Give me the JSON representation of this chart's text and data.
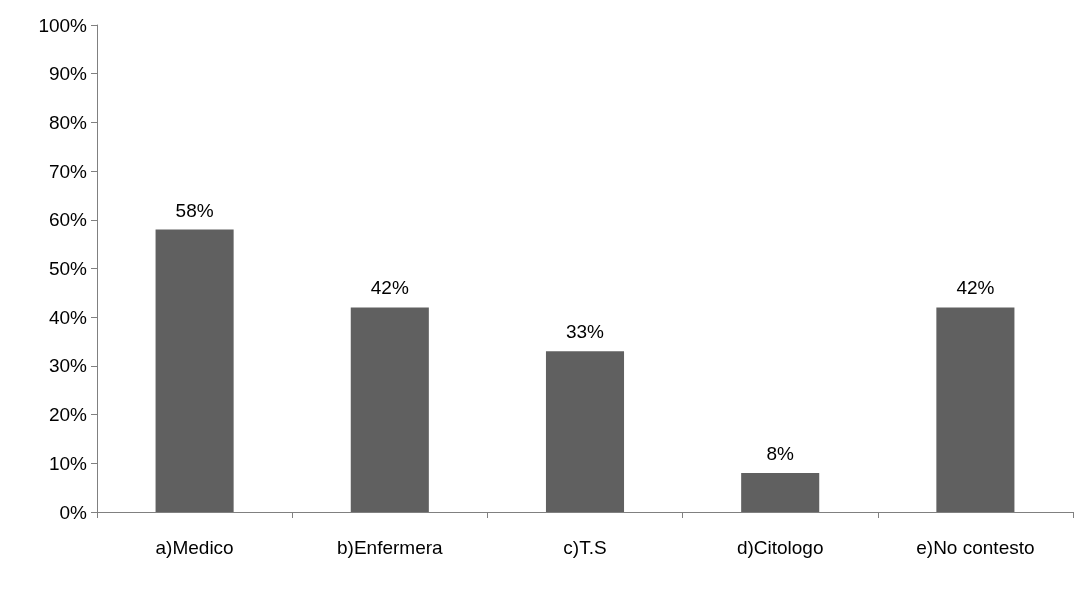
{
  "chart_data": {
    "type": "bar",
    "categories": [
      "a)Medico",
      "b)Enfermera",
      "c)T.S",
      "d)Citologo",
      "e)No contesto"
    ],
    "values": [
      58,
      42,
      33,
      8,
      42
    ],
    "value_labels": [
      "58%",
      "42%",
      "33%",
      "8%",
      "42%"
    ],
    "color": "#606060",
    "ylim": [
      0,
      100
    ],
    "yticks": [
      {
        "value": 0,
        "label": "0%"
      },
      {
        "value": 10,
        "label": "10%"
      },
      {
        "value": 20,
        "label": "20%"
      },
      {
        "value": 30,
        "label": "30%"
      },
      {
        "value": 40,
        "label": "40%"
      },
      {
        "value": 50,
        "label": "50%"
      },
      {
        "value": 60,
        "label": "60%"
      },
      {
        "value": 70,
        "label": "70%"
      },
      {
        "value": 80,
        "label": "80%"
      },
      {
        "value": 90,
        "label": "90%"
      },
      {
        "value": 100,
        "label": "100%"
      }
    ],
    "grid": false
  }
}
